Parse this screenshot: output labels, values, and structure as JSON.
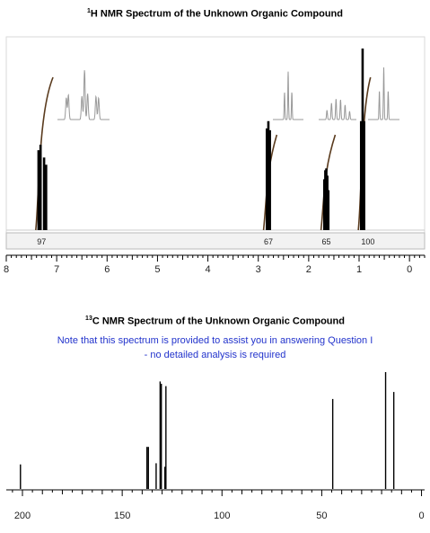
{
  "h_nmr": {
    "title_sup": "1",
    "title_rest": "H NMR Spectrum of the Unknown Organic Compound"
  },
  "c_nmr": {
    "title_sup": "13",
    "title_rest": "C NMR Spectrum of the Unknown Organic Compound",
    "note_line1": "Note that this spectrum is provided to assist you in answering Question I",
    "note_line2": "- no detailed analysis is required"
  },
  "colors": {
    "peak": "#000000",
    "integral": "#5a3b1e",
    "inset": "#999999",
    "note": "#2233cc"
  },
  "chart_data": [
    {
      "type": "line",
      "name": "1H NMR",
      "title": "1H NMR Spectrum of the Unknown Organic Compound",
      "xlabel": "",
      "ylabel": "",
      "xlim": [
        8,
        -0.3
      ],
      "x_reversed": true,
      "x_ticks": [
        8,
        7,
        6,
        5,
        4,
        3,
        2,
        1,
        0
      ],
      "peaks": [
        {
          "x": 7.36,
          "height": 0.44
        },
        {
          "x": 7.32,
          "height": 0.47
        },
        {
          "x": 7.25,
          "height": 0.4
        },
        {
          "x": 7.21,
          "height": 0.36
        },
        {
          "x": 2.83,
          "height": 0.56
        },
        {
          "x": 2.8,
          "height": 0.6
        },
        {
          "x": 2.77,
          "height": 0.55
        },
        {
          "x": 1.69,
          "height": 0.28
        },
        {
          "x": 1.67,
          "height": 0.33
        },
        {
          "x": 1.65,
          "height": 0.34
        },
        {
          "x": 1.63,
          "height": 0.3
        },
        {
          "x": 1.61,
          "height": 0.22
        },
        {
          "x": 0.96,
          "height": 0.6
        },
        {
          "x": 0.93,
          "height": 1.0
        },
        {
          "x": 0.9,
          "height": 0.6
        }
      ],
      "integrals": [
        {
          "label": "97",
          "x": 7.3,
          "from": 7.38,
          "to": 7.18
        },
        {
          "label": "67",
          "x": 2.8,
          "from": 2.86,
          "to": 2.74
        },
        {
          "label": "65",
          "x": 1.65,
          "from": 1.72,
          "to": 1.58
        },
        {
          "label": "100",
          "x": 0.93,
          "from": 0.98,
          "to": 0.88
        }
      ]
    },
    {
      "type": "line",
      "name": "13C NMR",
      "title": "13C NMR Spectrum of the Unknown Organic Compound",
      "xlabel": "",
      "ylabel": "",
      "xlim": [
        209,
        -2
      ],
      "x_reversed": true,
      "x_ticks": [
        200,
        150,
        100,
        50,
        0
      ],
      "peaks": [
        {
          "x": 201.0,
          "height": 0.21
        },
        {
          "x": 137.6,
          "height": 0.36
        },
        {
          "x": 136.9,
          "height": 0.36
        },
        {
          "x": 133.0,
          "height": 0.22
        },
        {
          "x": 131.0,
          "height": 0.92
        },
        {
          "x": 130.4,
          "height": 0.9
        },
        {
          "x": 128.6,
          "height": 0.19
        },
        {
          "x": 128.1,
          "height": 0.88
        },
        {
          "x": 44.5,
          "height": 0.77
        },
        {
          "x": 18.0,
          "height": 1.0
        },
        {
          "x": 13.9,
          "height": 0.83
        }
      ]
    }
  ]
}
